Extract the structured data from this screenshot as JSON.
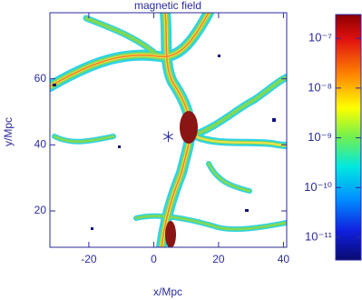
{
  "chart_data": {
    "type": "map",
    "title": "magnetic field",
    "xlabel": "x/Mpc",
    "ylabel": "y/Mpc",
    "xlim": [
      -32,
      41
    ],
    "xticks": [
      -20,
      0,
      20,
      40
    ],
    "ylim": [
      9,
      80
    ],
    "yticks": [
      20,
      40,
      60
    ],
    "marker": {
      "x": 4.5,
      "y": 42.5
    },
    "colorbar_lim": [
      3.5e-12,
      3e-07
    ],
    "colorbar_log": true,
    "colorbar_ticks": [
      {
        "value": 1e-07,
        "label": "10⁻⁷"
      },
      {
        "value": 1e-08,
        "label": "10⁻⁸"
      },
      {
        "value": 1e-09,
        "label": "10⁻⁹"
      },
      {
        "value": 1e-10,
        "label": "10⁻¹⁰"
      },
      {
        "value": 1e-11,
        "label": "10⁻¹¹"
      }
    ]
  }
}
